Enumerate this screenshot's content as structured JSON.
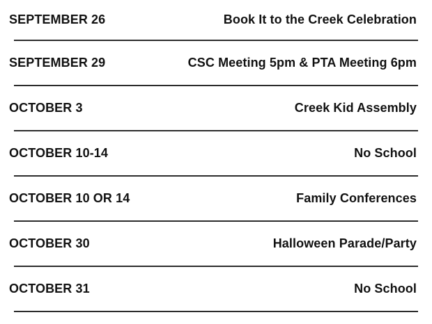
{
  "page": {
    "background_color": "#ffffff",
    "text_color": "#111111",
    "divider_color": "#2b2b2b"
  },
  "schedule": {
    "rows": [
      {
        "date": "SEPTEMBER 26",
        "event": "Book It to the Creek Celebration"
      },
      {
        "date": "SEPTEMBER 29",
        "event": "CSC Meeting 5pm & PTA Meeting 6pm"
      },
      {
        "date": "OCTOBER 3",
        "event": "Creek Kid Assembly"
      },
      {
        "date": "OCTOBER 10-14",
        "event": "No School"
      },
      {
        "date": "OCTOBER 10 OR 14",
        "event": "Family Conferences"
      },
      {
        "date": "OCTOBER 30",
        "event": "Halloween Parade/Party"
      },
      {
        "date": "OCTOBER 31",
        "event": "No School"
      }
    ]
  }
}
